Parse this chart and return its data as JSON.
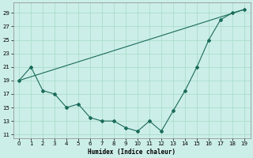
{
  "xlabel": "Humidex (Indice chaleur)",
  "background_color": "#cceee8",
  "line_color": "#1a6b5a",
  "grid_color": "#aaddcc",
  "xlim": [
    -0.5,
    19.5
  ],
  "ylim": [
    10.5,
    30.5
  ],
  "yticks": [
    11,
    13,
    15,
    17,
    19,
    21,
    23,
    25,
    27,
    29
  ],
  "xticks": [
    0,
    1,
    2,
    3,
    4,
    5,
    6,
    7,
    8,
    9,
    10,
    11,
    12,
    13,
    14,
    15,
    16,
    17,
    18,
    19
  ],
  "line1_x": [
    0,
    1,
    2,
    3,
    4,
    5,
    6,
    7,
    8,
    9,
    10,
    11,
    12,
    13,
    14,
    15,
    16,
    17,
    18,
    19
  ],
  "line1_y": [
    19,
    21,
    17.5,
    17,
    15,
    15.5,
    13.5,
    13,
    13,
    12,
    11.5,
    13,
    11.5,
    14.5,
    17.5,
    21,
    25,
    28,
    29,
    29.5
  ],
  "line2_x": [
    0,
    19
  ],
  "line2_y": [
    19,
    29.5
  ]
}
